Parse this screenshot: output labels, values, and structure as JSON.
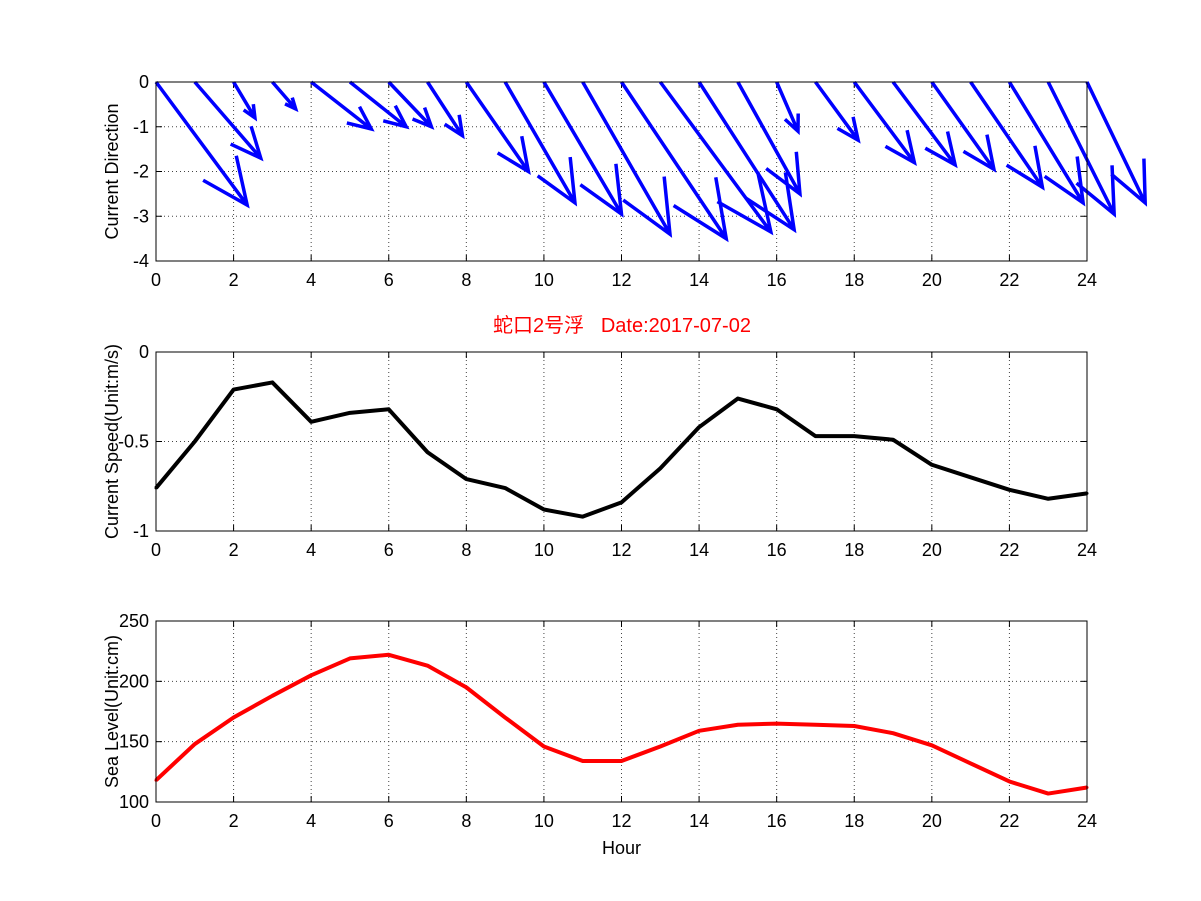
{
  "chart_data": [
    {
      "type": "quiver",
      "ylabel": "Current Direction",
      "xlim": [
        0,
        24
      ],
      "ylim": [
        -4,
        0
      ],
      "xticks": [
        "0",
        "2",
        "4",
        "6",
        "8",
        "10",
        "12",
        "14",
        "16",
        "18",
        "20",
        "22",
        "24"
      ],
      "yticks": [
        "0",
        "-1",
        "-2",
        "-3",
        "-4"
      ],
      "x": [
        0,
        1,
        2,
        3,
        4,
        5,
        6,
        7,
        8,
        9,
        10,
        11,
        12,
        13,
        14,
        15,
        16,
        17,
        18,
        19,
        20,
        21,
        22,
        23,
        24
      ],
      "u": [
        2.35,
        1.7,
        0.55,
        0.6,
        1.55,
        1.45,
        1.1,
        0.9,
        1.6,
        1.8,
        2.0,
        2.25,
        2.7,
        2.85,
        2.45,
        1.6,
        0.55,
        1.1,
        1.55,
        1.6,
        1.6,
        1.85,
        1.9,
        1.7,
        1.5
      ],
      "v": [
        -2.75,
        -1.7,
        -0.8,
        -0.6,
        -1.05,
        -1.0,
        -1.0,
        -1.2,
        -2.0,
        -2.7,
        -2.95,
        -3.4,
        -3.5,
        -3.35,
        -3.3,
        -2.5,
        -1.1,
        -1.3,
        -1.8,
        -1.85,
        -1.95,
        -2.35,
        -2.7,
        -2.95,
        -2.7
      ],
      "color": "#0000ff"
    },
    {
      "type": "line",
      "title": "蛇口2号浮   Date:2017-07-02",
      "title_color": "#ff0000",
      "ylabel": "Current Speed(Unit:m/s)",
      "xlim": [
        0,
        24
      ],
      "ylim": [
        -1,
        0
      ],
      "xticks": [
        "0",
        "2",
        "4",
        "6",
        "8",
        "10",
        "12",
        "14",
        "16",
        "18",
        "20",
        "22",
        "24"
      ],
      "yticks": [
        "0",
        "-0.5",
        "-1"
      ],
      "x": [
        0,
        1,
        2,
        3,
        4,
        5,
        6,
        7,
        8,
        9,
        10,
        11,
        12,
        13,
        14,
        15,
        16,
        17,
        18,
        19,
        20,
        21,
        22,
        23,
        24
      ],
      "y": [
        -0.76,
        -0.5,
        -0.21,
        -0.17,
        -0.39,
        -0.34,
        -0.32,
        -0.56,
        -0.71,
        -0.76,
        -0.88,
        -0.92,
        -0.84,
        -0.65,
        -0.42,
        -0.26,
        -0.32,
        -0.47,
        -0.47,
        -0.49,
        -0.63,
        -0.7,
        -0.77,
        -0.82,
        -0.79
      ],
      "color": "#000000"
    },
    {
      "type": "line",
      "ylabel": "Sea Level(Unit:cm)",
      "xlabel": "Hour",
      "xlim": [
        0,
        24
      ],
      "ylim": [
        100,
        250
      ],
      "xticks": [
        "0",
        "2",
        "4",
        "6",
        "8",
        "10",
        "12",
        "14",
        "16",
        "18",
        "20",
        "22",
        "24"
      ],
      "yticks": [
        "100",
        "150",
        "200",
        "250"
      ],
      "x": [
        0,
        1,
        2,
        3,
        4,
        5,
        6,
        7,
        8,
        9,
        10,
        11,
        12,
        13,
        14,
        15,
        16,
        17,
        18,
        19,
        20,
        21,
        22,
        23,
        24
      ],
      "y": [
        118,
        148,
        170,
        188,
        205,
        219,
        222,
        213,
        195,
        170,
        146,
        134,
        134,
        146,
        159,
        164,
        165,
        164,
        163,
        157,
        147,
        132,
        117,
        107,
        112
      ],
      "color": "#ff0000"
    }
  ]
}
